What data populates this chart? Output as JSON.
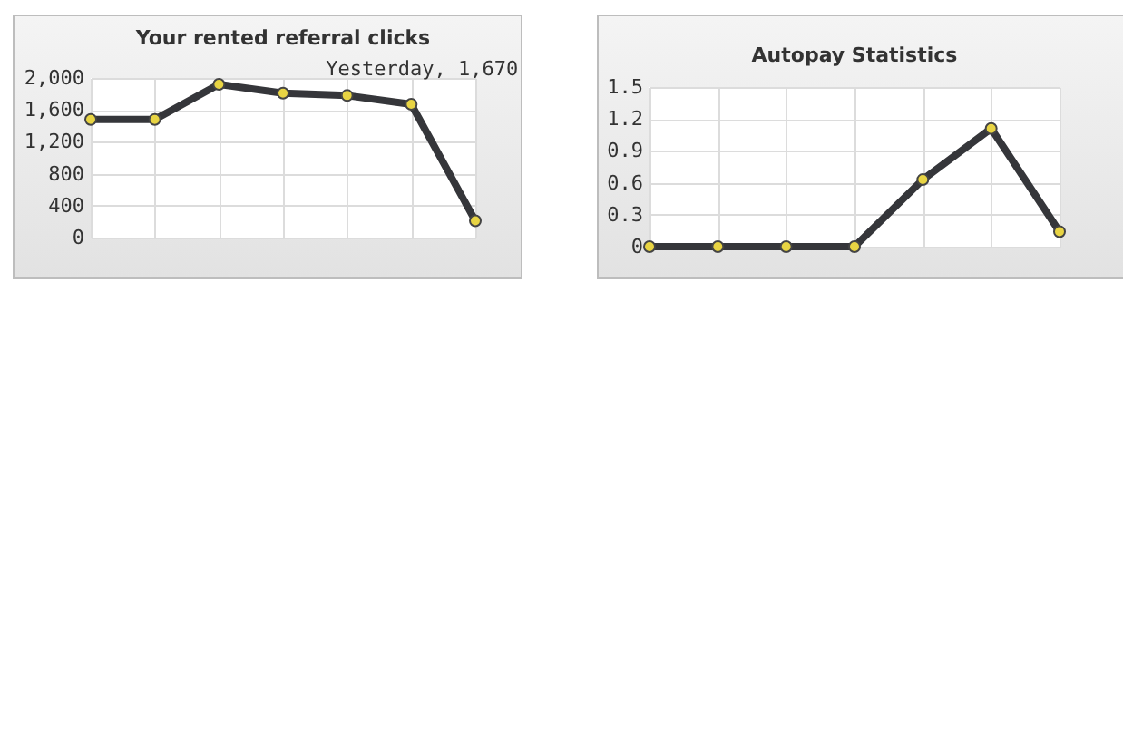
{
  "chart_data": [
    {
      "type": "line",
      "title": "Your rented referral clicks",
      "categories": [
        null,
        null,
        null,
        null,
        null,
        null,
        null
      ],
      "series": [
        {
          "color": "#35363a",
          "values": [
            1480,
            1480,
            1920,
            1810,
            1780,
            1670,
            210
          ]
        }
      ],
      "ylim": [
        0,
        2000
      ],
      "yticks": [
        0,
        {
          "value": 400,
          "label": "400"
        },
        {
          "value": 800,
          "label": "800"
        },
        {
          "value": 1200,
          "label": "1,200"
        },
        {
          "value": 1600,
          "label": "1,600"
        },
        {
          "value": 2000,
          "label": "2,000"
        }
      ],
      "annotations": [
        {
          "text": "Yesterday, 1,670",
          "y": 1670
        }
      ],
      "grid": true,
      "marker": "circle",
      "tick_labels": "y",
      "legend": false
    },
    {
      "type": "line",
      "title": "Autopay Statistics",
      "categories": [
        null,
        null,
        null,
        null,
        null,
        null,
        null
      ],
      "series": [
        {
          "color": "#35363a",
          "values": [
            0,
            0,
            0,
            0,
            0.63,
            1.11,
            0.14
          ]
        }
      ],
      "ylim": [
        0,
        1.5
      ],
      "yticks": [
        0,
        0.3,
        0.6,
        0.9,
        1.2,
        1.5
      ],
      "grid": true,
      "marker": "circle",
      "tick_labels": "y",
      "legend": false
    }
  ]
}
